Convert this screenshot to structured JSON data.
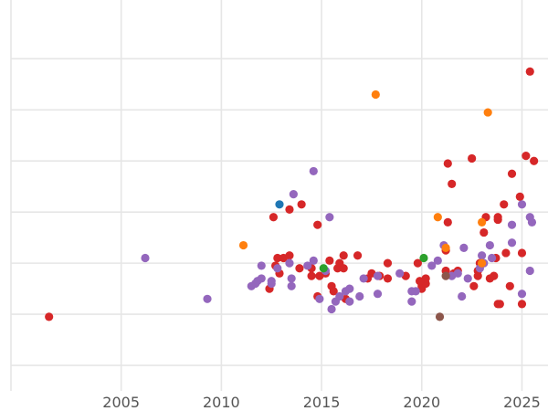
{
  "chart_data": {
    "type": "scatter",
    "title": "",
    "xlabel": "",
    "ylabel": "",
    "xlim": [
      1999.5,
      2026.3
    ],
    "ylim": [
      -1,
      14.3
    ],
    "x_ticks": [
      2005,
      2010,
      2015,
      2020,
      2025
    ],
    "x_tick_labels": [
      "2005",
      "2010",
      "2015",
      "2020",
      "2025"
    ],
    "y_gridlines": [
      0,
      2,
      4,
      6,
      8,
      10,
      12
    ],
    "y_tick_labels": [],
    "colors": {
      "red": "#d62728",
      "purple": "#9467bd",
      "orange": "#ff7f0e",
      "blue": "#1f77b4",
      "green": "#2ca02c",
      "brown": "#8c564b"
    },
    "series": [
      {
        "name": "red",
        "color": "#d62728",
        "points": [
          [
            2001.4,
            1.9
          ],
          [
            2012.4,
            3.0
          ],
          [
            2012.7,
            3.9
          ],
          [
            2012.9,
            3.6
          ],
          [
            2012.8,
            4.2
          ],
          [
            2013.1,
            4.2
          ],
          [
            2013.4,
            4.3
          ],
          [
            2013.4,
            6.1
          ],
          [
            2013.9,
            3.8
          ],
          [
            2014.0,
            6.3
          ],
          [
            2014.5,
            3.8
          ],
          [
            2014.5,
            3.5
          ],
          [
            2014.8,
            2.7
          ],
          [
            2014.9,
            3.5
          ],
          [
            2015.2,
            3.6
          ],
          [
            2015.4,
            4.1
          ],
          [
            2015.5,
            3.1
          ],
          [
            2015.6,
            2.9
          ],
          [
            2015.8,
            3.8
          ],
          [
            2015.9,
            4.0
          ],
          [
            2016.1,
            3.8
          ],
          [
            2014.8,
            5.5
          ],
          [
            2016.2,
            2.6
          ],
          [
            2016.8,
            4.3
          ],
          [
            2017.3,
            3.4
          ],
          [
            2017.5,
            3.6
          ],
          [
            2017.9,
            3.5
          ],
          [
            2018.3,
            4.0
          ],
          [
            2018.3,
            3.4
          ],
          [
            2019.2,
            3.5
          ],
          [
            2019.8,
            4.0
          ],
          [
            2020.0,
            3.1
          ],
          [
            2020.0,
            3.0
          ],
          [
            2020.2,
            3.2
          ],
          [
            2020.2,
            3.4
          ],
          [
            2019.9,
            3.3
          ],
          [
            2021.2,
            3.7
          ],
          [
            2021.2,
            4.5
          ],
          [
            2021.3,
            5.6
          ],
          [
            2021.3,
            7.9
          ],
          [
            2021.5,
            7.1
          ],
          [
            2021.6,
            3.6
          ],
          [
            2021.8,
            3.7
          ],
          [
            2022.5,
            8.1
          ],
          [
            2022.6,
            3.1
          ],
          [
            2022.8,
            3.7
          ],
          [
            2022.8,
            3.5
          ],
          [
            2022.9,
            4.0
          ],
          [
            2023.1,
            5.2
          ],
          [
            2023.2,
            5.8
          ],
          [
            2023.4,
            3.4
          ],
          [
            2023.6,
            3.5
          ],
          [
            2023.7,
            4.2
          ],
          [
            2023.8,
            5.7
          ],
          [
            2023.8,
            5.8
          ],
          [
            2023.8,
            2.4
          ],
          [
            2023.9,
            2.4
          ],
          [
            2024.1,
            6.3
          ],
          [
            2024.2,
            4.4
          ],
          [
            2024.4,
            3.1
          ],
          [
            2024.5,
            7.5
          ],
          [
            2024.9,
            6.6
          ],
          [
            2025.0,
            4.4
          ],
          [
            2025.0,
            2.4
          ],
          [
            2025.2,
            8.2
          ],
          [
            2025.4,
            11.5
          ],
          [
            2025.6,
            8.0
          ],
          [
            2012.6,
            5.8
          ],
          [
            2016.1,
            4.3
          ]
        ]
      },
      {
        "name": "purple",
        "color": "#9467bd",
        "points": [
          [
            2006.2,
            4.2
          ],
          [
            2009.3,
            2.6
          ],
          [
            2011.5,
            3.1
          ],
          [
            2011.7,
            3.2
          ],
          [
            2011.8,
            3.3
          ],
          [
            2012.0,
            3.4
          ],
          [
            2012.0,
            3.9
          ],
          [
            2012.5,
            3.2
          ],
          [
            2012.5,
            3.3
          ],
          [
            2012.8,
            3.8
          ],
          [
            2013.4,
            4.0
          ],
          [
            2013.5,
            3.4
          ],
          [
            2013.5,
            3.1
          ],
          [
            2013.6,
            6.7
          ],
          [
            2014.3,
            3.9
          ],
          [
            2014.6,
            4.1
          ],
          [
            2014.6,
            7.6
          ],
          [
            2014.9,
            2.6
          ],
          [
            2015.2,
            3.7
          ],
          [
            2015.4,
            5.8
          ],
          [
            2015.5,
            2.2
          ],
          [
            2015.7,
            2.5
          ],
          [
            2015.9,
            2.7
          ],
          [
            2016.2,
            2.9
          ],
          [
            2016.4,
            3.0
          ],
          [
            2016.4,
            2.5
          ],
          [
            2016.9,
            2.7
          ],
          [
            2017.1,
            3.4
          ],
          [
            2017.8,
            2.8
          ],
          [
            2017.8,
            3.5
          ],
          [
            2018.9,
            3.6
          ],
          [
            2019.5,
            2.9
          ],
          [
            2019.5,
            2.5
          ],
          [
            2019.7,
            2.9
          ],
          [
            2020.5,
            3.9
          ],
          [
            2020.8,
            4.1
          ],
          [
            2021.1,
            4.7
          ],
          [
            2021.5,
            3.5
          ],
          [
            2021.8,
            3.6
          ],
          [
            2022.0,
            2.7
          ],
          [
            2022.1,
            4.6
          ],
          [
            2022.3,
            3.4
          ],
          [
            2022.9,
            3.8
          ],
          [
            2023.0,
            4.3
          ],
          [
            2023.1,
            4.0
          ],
          [
            2023.4,
            4.7
          ],
          [
            2023.5,
            4.2
          ],
          [
            2024.5,
            5.5
          ],
          [
            2024.5,
            4.8
          ],
          [
            2025.0,
            6.3
          ],
          [
            2025.0,
            2.8
          ],
          [
            2025.4,
            5.8
          ],
          [
            2025.5,
            5.6
          ],
          [
            2025.4,
            3.7
          ]
        ]
      },
      {
        "name": "orange",
        "color": "#ff7f0e",
        "points": [
          [
            2011.1,
            4.7
          ],
          [
            2017.7,
            10.6
          ],
          [
            2020.8,
            5.8
          ],
          [
            2021.2,
            4.6
          ],
          [
            2023.0,
            5.6
          ],
          [
            2023.3,
            9.9
          ],
          [
            2023.0,
            4.0
          ]
        ]
      },
      {
        "name": "blue",
        "color": "#1f77b4",
        "points": [
          [
            2012.9,
            6.3
          ]
        ]
      },
      {
        "name": "green",
        "color": "#2ca02c",
        "points": [
          [
            2015.1,
            3.8
          ],
          [
            2020.1,
            4.2
          ]
        ]
      },
      {
        "name": "brown",
        "color": "#8c564b",
        "points": [
          [
            2021.2,
            3.5
          ],
          [
            2020.9,
            1.9
          ]
        ]
      }
    ]
  }
}
